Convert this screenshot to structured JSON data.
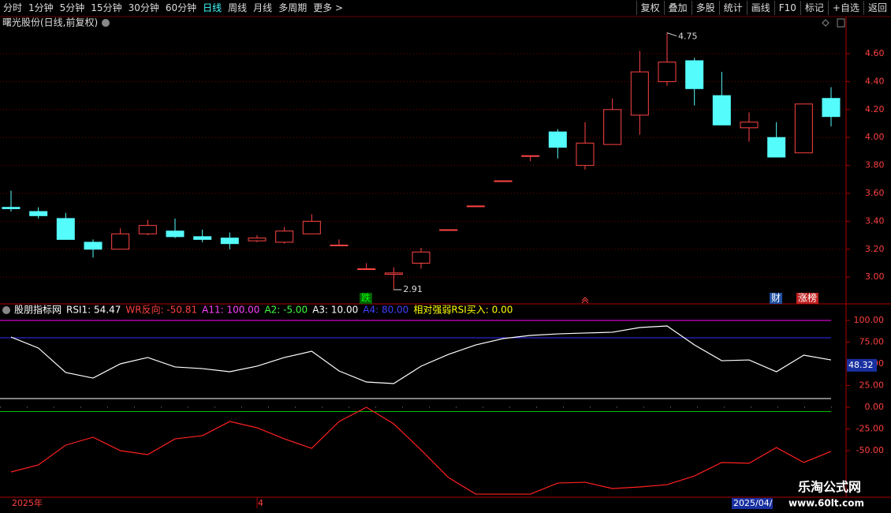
{
  "toolbar": {
    "left": [
      "分时",
      "1分钟",
      "5分钟",
      "15分钟",
      "30分钟",
      "60分钟",
      "日线",
      "周线",
      "月线",
      "多周期",
      "更多 >"
    ],
    "active": "日线",
    "right": [
      "复权",
      "叠加",
      "多股",
      "统计",
      "画线",
      "F10",
      "标记",
      "+自选",
      "返回"
    ]
  },
  "main": {
    "title": "曙光股份(日线,前复权)",
    "up_color": "#ff4444",
    "down_color": "#54fcfc",
    "ylim": [
      2.82,
      4.77
    ],
    "yticks": [
      {
        "value": 3.0,
        "label": "3.00"
      },
      {
        "value": 3.2,
        "label": "3.20"
      },
      {
        "value": 3.4,
        "label": "3.40"
      },
      {
        "value": 3.6,
        "label": "3.60"
      },
      {
        "value": 3.8,
        "label": "3.80"
      },
      {
        "value": 4.0,
        "label": "4.00"
      },
      {
        "value": 4.2,
        "label": "4.20"
      },
      {
        "value": 4.4,
        "label": "4.40"
      },
      {
        "value": 4.6,
        "label": "4.60"
      }
    ],
    "open": [
      3.5,
      3.47,
      3.42,
      3.25,
      3.2,
      3.31,
      3.33,
      3.29,
      3.28,
      3.26,
      3.25,
      3.31,
      3.23,
      3.06,
      3.02,
      3.1,
      3.34,
      3.51,
      3.69,
      3.87,
      4.04,
      3.8,
      3.95,
      4.16,
      4.4,
      4.55,
      4.3,
      4.07,
      4.0,
      3.89,
      4.28
    ],
    "high": [
      3.62,
      3.5,
      3.46,
      3.27,
      3.35,
      3.41,
      3.42,
      3.34,
      3.32,
      3.3,
      3.36,
      3.45,
      3.27,
      3.1,
      3.07,
      3.21,
      3.34,
      3.51,
      3.69,
      3.87,
      4.06,
      4.11,
      4.28,
      4.62,
      4.75,
      4.57,
      4.47,
      4.18,
      4.11,
      4.24,
      4.36
    ],
    "low": [
      3.47,
      3.42,
      3.27,
      3.14,
      3.2,
      3.3,
      3.28,
      3.25,
      3.2,
      3.25,
      3.24,
      3.31,
      3.23,
      3.06,
      2.91,
      3.06,
      3.34,
      3.51,
      3.69,
      3.83,
      3.85,
      3.77,
      3.95,
      4.02,
      4.37,
      4.23,
      4.09,
      3.97,
      3.86,
      3.89,
      4.08
    ],
    "close": [
      3.49,
      3.44,
      3.27,
      3.2,
      3.31,
      3.37,
      3.29,
      3.27,
      3.24,
      3.28,
      3.33,
      3.4,
      3.23,
      3.06,
      3.03,
      3.18,
      3.34,
      3.51,
      3.69,
      3.87,
      3.93,
      3.96,
      4.2,
      4.47,
      4.54,
      4.35,
      4.09,
      4.11,
      3.86,
      4.24,
      4.15
    ],
    "high_label": {
      "value": 4.75,
      "label": "4.75"
    },
    "low_label": {
      "value": 2.91,
      "label": "2.91"
    },
    "signals": [
      {
        "text": "跌",
        "color": "#00ff00",
        "bg": "#006000"
      },
      {
        "text": "财",
        "color": "#ffffff",
        "bg": "#2050a0"
      },
      {
        "text": "涨榜",
        "color": "#ffffff",
        "bg": "#c02020"
      }
    ]
  },
  "indicator": {
    "legend": [
      {
        "text": "股朋指标网",
        "color": "#ffffff"
      },
      {
        "text": "RSI1: 54.47",
        "color": "#ffffff"
      },
      {
        "text": "WR反向: -50.81",
        "color": "#ff4040"
      },
      {
        "text": "A11: 100.00",
        "color": "#ff40ff"
      },
      {
        "text": "A2: -5.00",
        "color": "#40ff40"
      },
      {
        "text": "A3: 10.00",
        "color": "#ffffff"
      },
      {
        "text": "A4: 80.00",
        "color": "#4040ff"
      },
      {
        "text": "相对强弱RSI买入: 0.00",
        "color": "#ffff00"
      }
    ],
    "ylim": [
      -103.6,
      110.9
    ],
    "yticks": [
      {
        "value": 100,
        "label": "100.00"
      },
      {
        "value": 75,
        "label": "75.00"
      },
      {
        "value": 50,
        "label": "50.00"
      },
      {
        "value": 25,
        "label": "25.00"
      },
      {
        "value": 0,
        "label": "0.00"
      },
      {
        "value": -25,
        "label": "-25.00"
      },
      {
        "value": -50,
        "label": "-50.00"
      }
    ],
    "references": [
      {
        "value": 100,
        "color": "#ff00ff"
      },
      {
        "value": 80,
        "color": "#3030ff"
      },
      {
        "value": 10,
        "color": "#ffffff"
      },
      {
        "value": -5,
        "color": "#00c000"
      }
    ],
    "series": [
      {
        "color": "#ffffff",
        "values": [
          80.9,
          68.2,
          40,
          33.6,
          50,
          57.3,
          46.4,
          44.5,
          40.9,
          47.3,
          57.3,
          64.5,
          41.8,
          29.1,
          27.3,
          47.3,
          60.9,
          71.8,
          79.1,
          82.7,
          84.5,
          85.5,
          86.4,
          91.8,
          93.6,
          71.8,
          53.6,
          54.5,
          40.9,
          60,
          54.47
        ]
      },
      {
        "color": "#ff2020",
        "values": [
          -74.5,
          -66.4,
          -43.6,
          -34.5,
          -50,
          -54.5,
          -36.4,
          -32.7,
          -16.4,
          -23.6,
          -36.4,
          -47.3,
          -16.4,
          0,
          -19.1,
          -49.1,
          -80.9,
          -100,
          -100,
          -100,
          -87.3,
          -86.4,
          -93.6,
          -91.8,
          -89.1,
          -79.1,
          -63.6,
          -64.5,
          -46.4,
          -63.6,
          -50.81
        ]
      }
    ],
    "cursor_label": {
      "value": 48.32,
      "label": "48.32"
    }
  },
  "time_axis": {
    "left": "2025年",
    "mid": "4",
    "cursor": "2025/04/"
  },
  "watermark": {
    "name": "乐淘公式网",
    "url": "www.60lt.com"
  }
}
